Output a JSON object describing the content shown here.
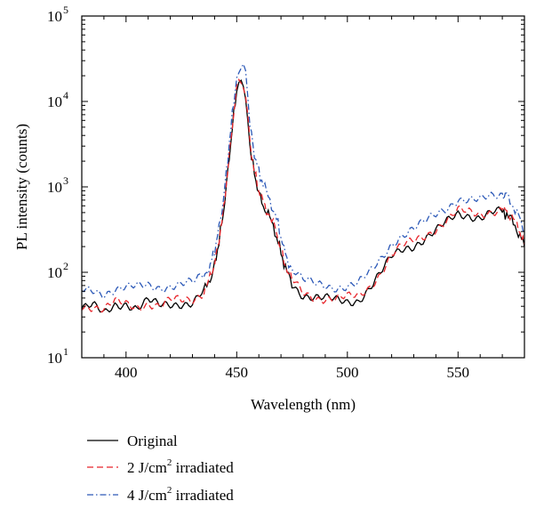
{
  "chart_data": {
    "type": "line",
    "title": "",
    "xlabel": "Wavelength (nm)",
    "ylabel": "PL intensity (counts)",
    "xlim": [
      380,
      580
    ],
    "ylim": [
      10,
      100000
    ],
    "yscale": "log",
    "grid": false,
    "legend_position": "below",
    "x_ticks": [
      {
        "value": 400,
        "label": "400"
      },
      {
        "value": 450,
        "label": "450"
      },
      {
        "value": 500,
        "label": "500"
      },
      {
        "value": 550,
        "label": "550"
      }
    ],
    "y_ticks": [
      {
        "value": 10,
        "base": "10",
        "exp": "1"
      },
      {
        "value": 100,
        "base": "10",
        "exp": "2"
      },
      {
        "value": 1000,
        "base": "10",
        "exp": "3"
      },
      {
        "value": 10000,
        "base": "10",
        "exp": "4"
      },
      {
        "value": 100000,
        "base": "10",
        "exp": "5"
      }
    ],
    "x": [
      380,
      385,
      390,
      395,
      400,
      405,
      410,
      415,
      420,
      425,
      430,
      435,
      438,
      440,
      442,
      444,
      446,
      448,
      450,
      451,
      452,
      453,
      454,
      455,
      456,
      458,
      460,
      462,
      465,
      468,
      470,
      472,
      475,
      480,
      485,
      490,
      495,
      500,
      505,
      510,
      515,
      520,
      525,
      530,
      535,
      540,
      545,
      550,
      555,
      560,
      565,
      570,
      572,
      575,
      578,
      580
    ],
    "series": [
      {
        "name": "Original",
        "color": "#000000",
        "dash": "solid",
        "values": [
          38,
          40,
          32,
          42,
          44,
          38,
          46,
          40,
          42,
          44,
          45,
          60,
          80,
          120,
          230,
          500,
          1500,
          5000,
          13000,
          16000,
          17000,
          15000,
          11000,
          6000,
          3000,
          1400,
          850,
          600,
          430,
          270,
          170,
          110,
          75,
          55,
          50,
          48,
          47,
          46,
          48,
          65,
          95,
          150,
          190,
          210,
          250,
          300,
          380,
          480,
          470,
          450,
          500,
          500,
          480,
          380,
          270,
          200
        ]
      },
      {
        "name": "2 J/cm² irradiated",
        "name_main": "2 J/cm",
        "name_sup": "2",
        "name_tail": " irradiated",
        "color": "#e8252b",
        "dash": "dash",
        "values": [
          42,
          40,
          36,
          44,
          42,
          40,
          44,
          40,
          46,
          46,
          48,
          60,
          85,
          125,
          240,
          520,
          1600,
          5200,
          13500,
          17000,
          17500,
          16000,
          12000,
          6500,
          3200,
          1500,
          900,
          650,
          460,
          290,
          185,
          120,
          80,
          58,
          52,
          50,
          48,
          50,
          52,
          68,
          100,
          160,
          200,
          230,
          270,
          330,
          410,
          520,
          490,
          470,
          530,
          560,
          520,
          420,
          300,
          210
        ]
      },
      {
        "name": "4 J/cm² irradiated",
        "name_main": "4 J/cm",
        "name_sup": "2",
        "name_tail": " irradiated",
        "color": "#2c59b8",
        "dash": "dashdot",
        "values": [
          60,
          62,
          58,
          64,
          65,
          66,
          70,
          68,
          70,
          72,
          74,
          90,
          120,
          180,
          330,
          700,
          2200,
          7000,
          19000,
          25000,
          28000,
          27000,
          20000,
          10000,
          5200,
          2400,
          1500,
          1050,
          700,
          430,
          260,
          160,
          110,
          80,
          72,
          70,
          68,
          70,
          74,
          95,
          140,
          220,
          280,
          320,
          380,
          470,
          580,
          740,
          700,
          680,
          760,
          820,
          790,
          600,
          420,
          300
        ]
      }
    ]
  }
}
